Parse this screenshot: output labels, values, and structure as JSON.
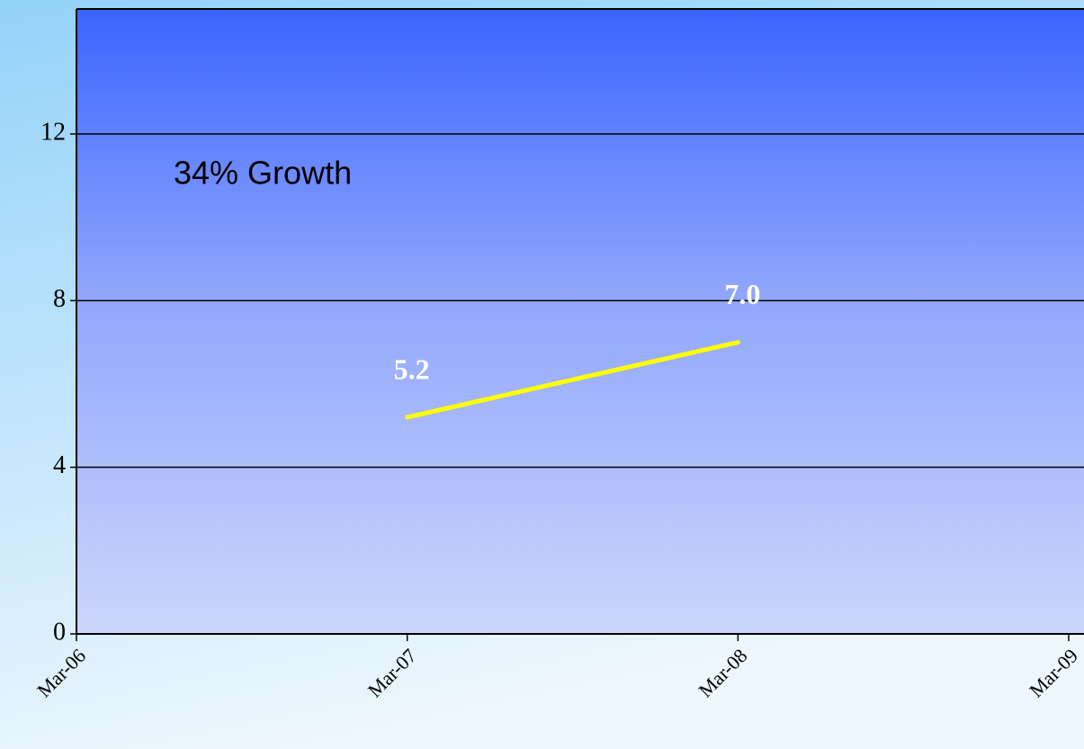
{
  "chart_data": {
    "type": "line",
    "annotation": "34% Growth",
    "x": [
      "2007-03",
      "2008-03"
    ],
    "series": [
      {
        "color": "#ffff00",
        "values": [
          5.2,
          7.0
        ],
        "value_labels": [
          "5.2",
          "7.0"
        ]
      }
    ],
    "xlim": [
      "2006-03",
      "2009-03"
    ],
    "xticks": [
      {
        "value": "2006-03",
        "label": "Mar-06"
      },
      {
        "value": "2007-03",
        "label": "Mar-07"
      },
      {
        "value": "2008-03",
        "label": "Mar-08"
      },
      {
        "value": "2009-03",
        "label": "Mar-09"
      }
    ],
    "ylim": [
      0,
      15
    ],
    "yticks": [
      0,
      4,
      8,
      12
    ],
    "grid": true
  }
}
